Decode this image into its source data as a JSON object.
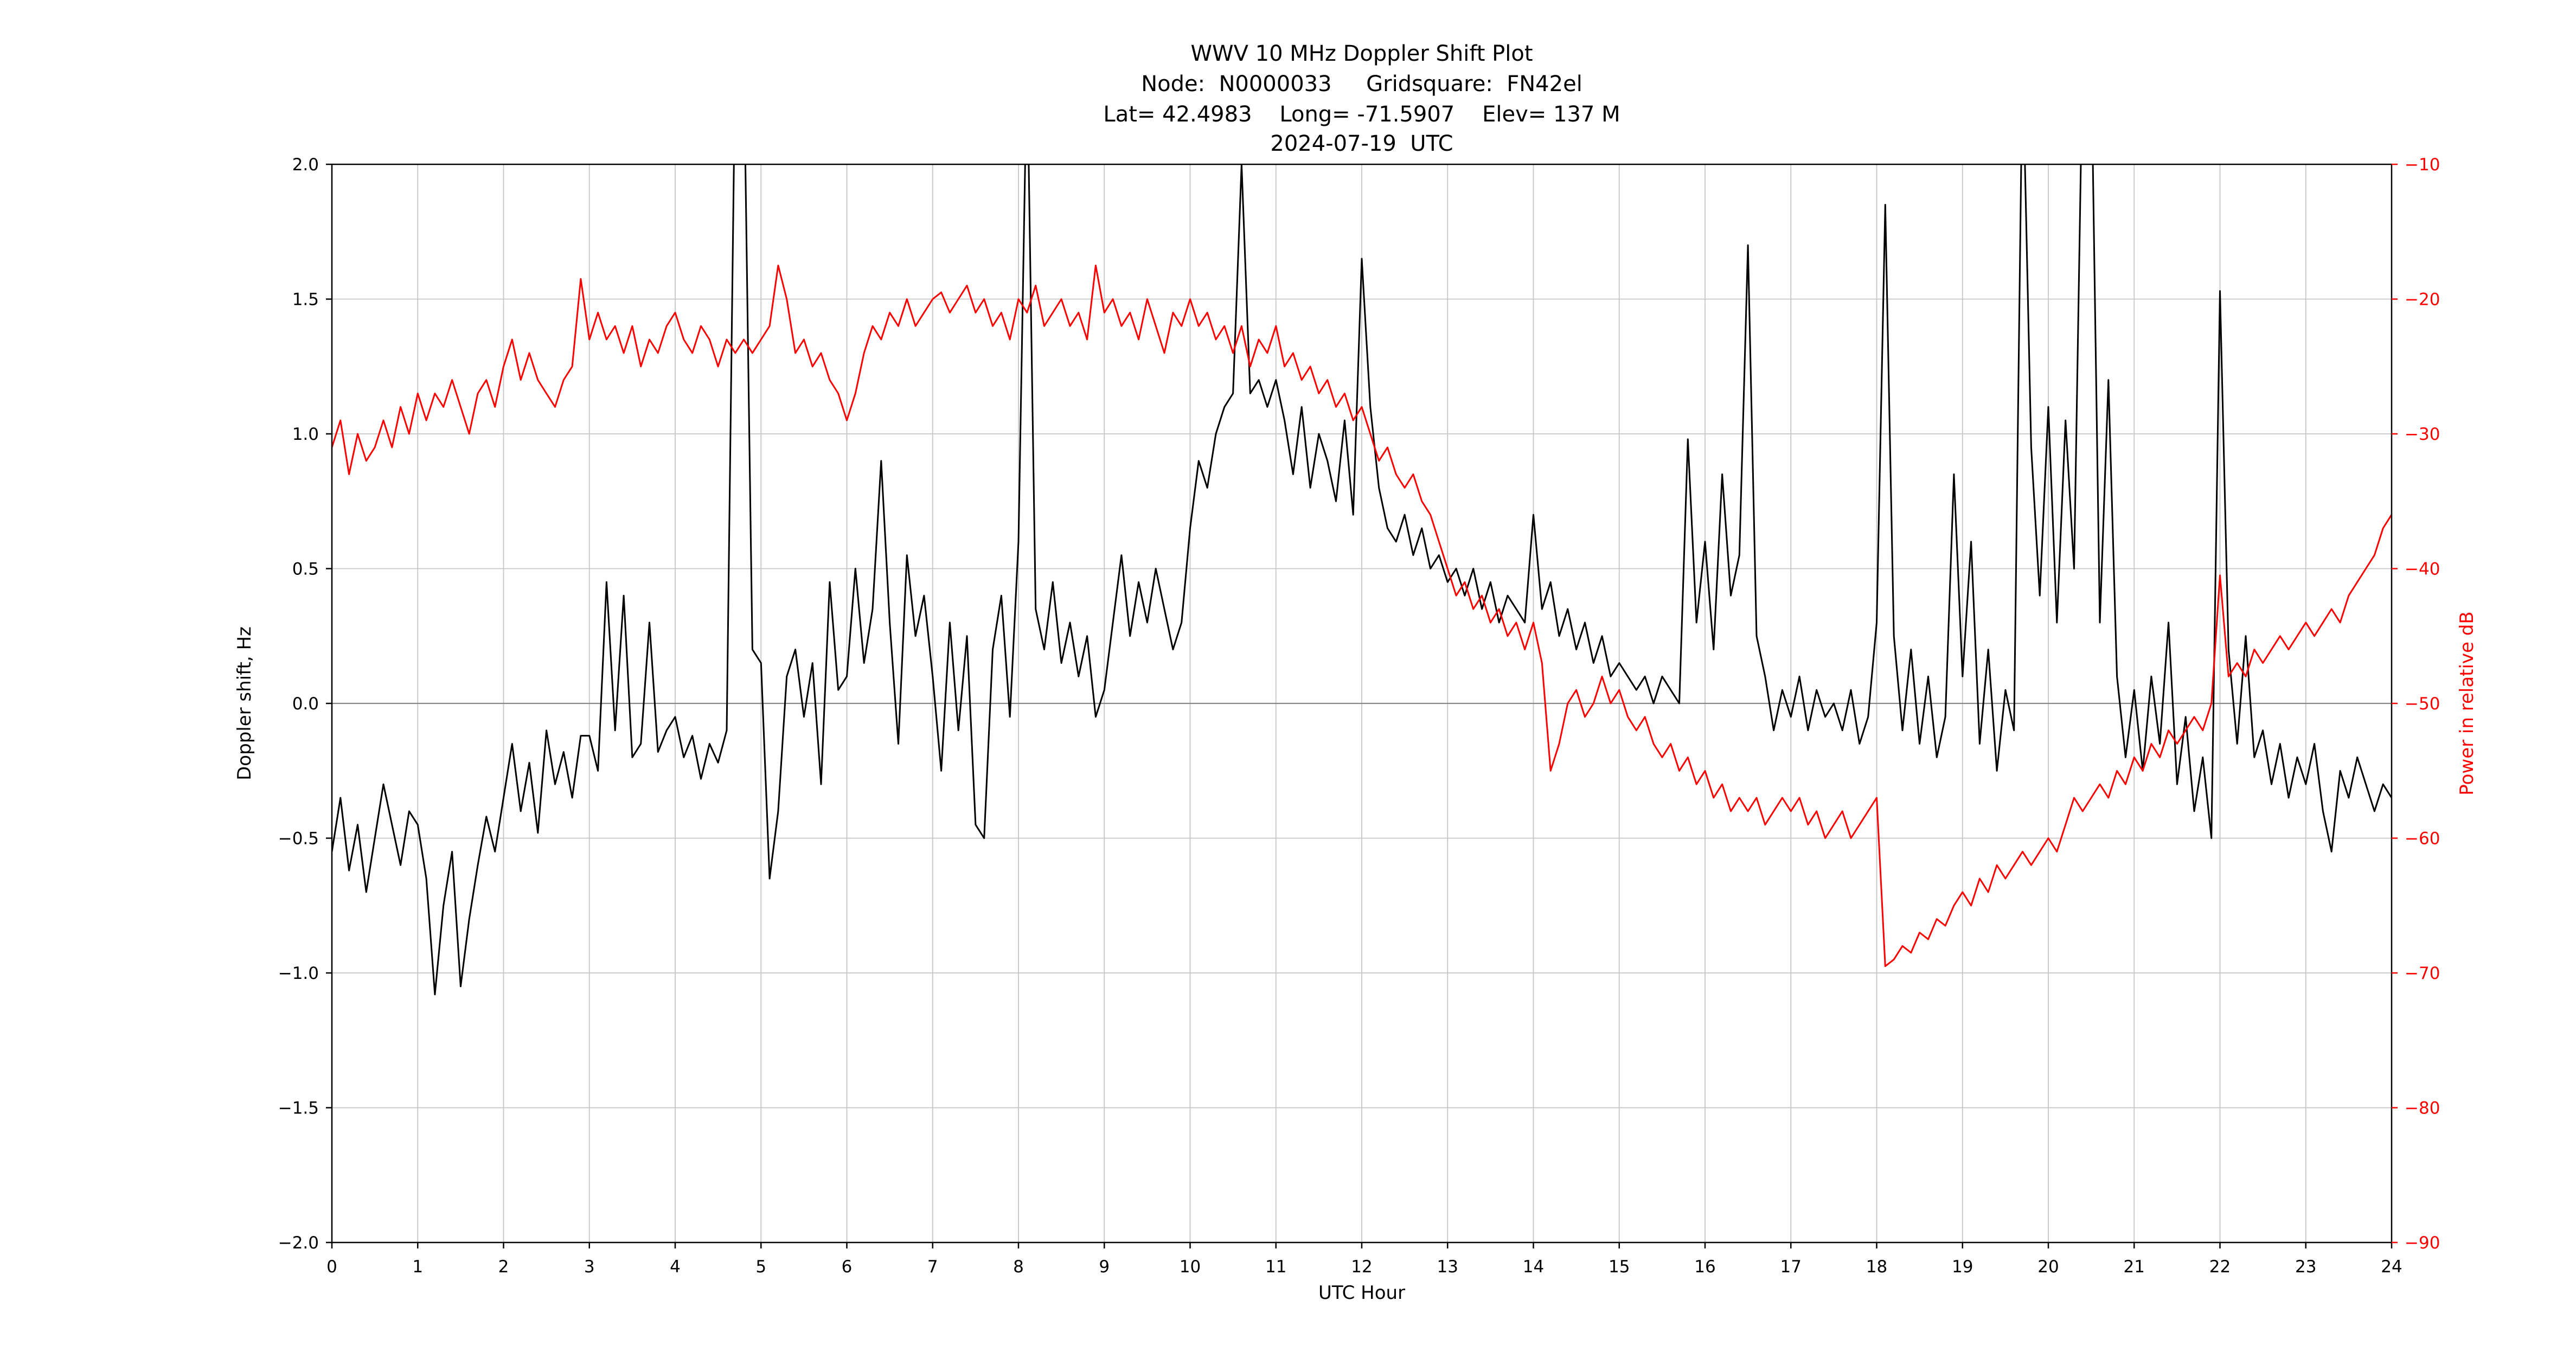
{
  "header": {
    "title": "WWV 10 MHz Doppler Shift Plot",
    "node_line": "Node:  N0000033     Gridsquare:  FN42el",
    "location_line": "Lat= 42.4983    Long= -71.5907    Elev= 137 M",
    "date_line": "2024-07-19  UTC"
  },
  "axes": {
    "x_label": "UTC Hour",
    "y_left_label": "Doppler shift, Hz",
    "y_right_label": "Power in relative dB",
    "x_ticks": [
      "0",
      "1",
      "2",
      "3",
      "4",
      "5",
      "6",
      "7",
      "8",
      "9",
      "10",
      "11",
      "12",
      "13",
      "14",
      "15",
      "16",
      "17",
      "18",
      "19",
      "20",
      "21",
      "22",
      "23",
      "24"
    ],
    "y_left_ticks": [
      "2.0",
      "1.5",
      "1.0",
      "0.5",
      "0.0",
      "−0.5",
      "−1.0",
      "−1.5",
      "−2.0"
    ],
    "y_right_ticks": [
      "−10",
      "−20",
      "−30",
      "−40",
      "−50",
      "−60",
      "−70",
      "−80",
      "−90"
    ]
  },
  "colors": {
    "doppler": "#000000",
    "power": "#ff0000",
    "grid": "#c6c6c6",
    "zero_line": "#888888",
    "spine": "#000000"
  },
  "chart_data": {
    "type": "line",
    "title": "WWV 10 MHz Doppler Shift Plot",
    "xlabel": "UTC Hour",
    "x_range": [
      0,
      24
    ],
    "x": {
      "start": 0,
      "step": 0.1,
      "end": 24
    },
    "grid": true,
    "legend": "none",
    "note": "Black doppler values above 2.0 Hz are clipped at the plot top",
    "series": [
      {
        "name": "Doppler shift, Hz",
        "axis": "left",
        "color": "#000000",
        "ylim": [
          -2.0,
          2.0
        ],
        "values": [
          -0.55,
          -0.35,
          -0.62,
          -0.45,
          -0.7,
          -0.5,
          -0.3,
          -0.45,
          -0.6,
          -0.4,
          -0.45,
          -0.65,
          -1.08,
          -0.75,
          -0.55,
          -1.05,
          -0.8,
          -0.6,
          -0.42,
          -0.55,
          -0.35,
          -0.15,
          -0.4,
          -0.22,
          -0.48,
          -0.1,
          -0.3,
          -0.18,
          -0.35,
          -0.12,
          -0.12,
          -0.25,
          0.45,
          -0.1,
          0.4,
          -0.2,
          -0.15,
          0.3,
          -0.18,
          -0.1,
          -0.05,
          -0.2,
          -0.12,
          -0.28,
          -0.15,
          -0.22,
          -0.1,
          2.4,
          2.4,
          0.2,
          0.15,
          -0.65,
          -0.4,
          0.1,
          0.2,
          -0.05,
          0.15,
          -0.3,
          0.45,
          0.05,
          0.1,
          0.5,
          0.15,
          0.35,
          0.9,
          0.3,
          -0.15,
          0.55,
          0.25,
          0.4,
          0.1,
          -0.25,
          0.3,
          -0.1,
          0.25,
          -0.45,
          -0.5,
          0.2,
          0.4,
          -0.05,
          0.6,
          2.4,
          0.35,
          0.2,
          0.45,
          0.15,
          0.3,
          0.1,
          0.25,
          -0.05,
          0.05,
          0.3,
          0.55,
          0.25,
          0.45,
          0.3,
          0.5,
          0.35,
          0.2,
          0.3,
          0.65,
          0.9,
          0.8,
          1.0,
          1.1,
          1.15,
          2.0,
          1.15,
          1.2,
          1.1,
          1.2,
          1.05,
          0.85,
          1.1,
          0.8,
          1.0,
          0.9,
          0.75,
          1.05,
          0.7,
          1.65,
          1.1,
          0.8,
          0.65,
          0.6,
          0.7,
          0.55,
          0.65,
          0.5,
          0.55,
          0.45,
          0.5,
          0.4,
          0.5,
          0.35,
          0.45,
          0.3,
          0.4,
          0.35,
          0.3,
          0.7,
          0.35,
          0.45,
          0.25,
          0.35,
          0.2,
          0.3,
          0.15,
          0.25,
          0.1,
          0.15,
          0.1,
          0.05,
          0.1,
          0.0,
          0.1,
          0.05,
          0.0,
          0.98,
          0.3,
          0.6,
          0.2,
          0.85,
          0.4,
          0.55,
          1.7,
          0.25,
          0.1,
          -0.1,
          0.05,
          -0.05,
          0.1,
          -0.1,
          0.05,
          -0.05,
          0.0,
          -0.1,
          0.05,
          -0.15,
          -0.05,
          0.3,
          1.85,
          0.25,
          -0.1,
          0.2,
          -0.15,
          0.1,
          -0.2,
          -0.05,
          0.85,
          0.1,
          0.6,
          -0.15,
          0.2,
          -0.25,
          0.05,
          -0.1,
          2.4,
          0.95,
          0.4,
          1.1,
          0.3,
          1.05,
          0.5,
          2.4,
          2.4,
          0.3,
          1.2,
          0.1,
          -0.2,
          0.05,
          -0.25,
          0.1,
          -0.15,
          0.3,
          -0.3,
          -0.05,
          -0.4,
          -0.2,
          -0.5,
          1.53,
          0.2,
          -0.15,
          0.25,
          -0.2,
          -0.1,
          -0.3,
          -0.15,
          -0.35,
          -0.2,
          -0.3,
          -0.15,
          -0.4,
          -0.55,
          -0.25,
          -0.35,
          -0.2,
          -0.3,
          -0.4,
          -0.3,
          -0.35
        ]
      },
      {
        "name": "Power in relative dB",
        "axis": "right",
        "color": "#ff0000",
        "ylim": [
          -90,
          -10
        ],
        "values": [
          -31,
          -29,
          -33,
          -30,
          -32,
          -31,
          -29,
          -31,
          -28,
          -30,
          -27,
          -29,
          -27,
          -28,
          -26,
          -28,
          -30,
          -27,
          -26,
          -28,
          -25,
          -23,
          -26,
          -24,
          -26,
          -27,
          -28,
          -26,
          -25,
          -18.5,
          -23,
          -21,
          -23,
          -22,
          -24,
          -22,
          -25,
          -23,
          -24,
          -22,
          -21,
          -23,
          -24,
          -22,
          -23,
          -25,
          -23,
          -24,
          -23,
          -24,
          -23,
          -22,
          -17.5,
          -20,
          -24,
          -23,
          -25,
          -24,
          -26,
          -27,
          -29,
          -27,
          -24,
          -22,
          -23,
          -21,
          -22,
          -20,
          -22,
          -21,
          -20,
          -19.5,
          -21,
          -20,
          -19,
          -21,
          -20,
          -22,
          -21,
          -23,
          -20,
          -21,
          -19,
          -22,
          -21,
          -20,
          -22,
          -21,
          -23,
          -17.5,
          -21,
          -20,
          -22,
          -21,
          -23,
          -20,
          -22,
          -24,
          -21,
          -22,
          -20,
          -22,
          -21,
          -23,
          -22,
          -24,
          -22,
          -25,
          -23,
          -24,
          -22,
          -25,
          -24,
          -26,
          -25,
          -27,
          -26,
          -28,
          -27,
          -29,
          -28,
          -30,
          -32,
          -31,
          -33,
          -34,
          -33,
          -35,
          -36,
          -38,
          -40,
          -42,
          -41,
          -43,
          -42,
          -44,
          -43,
          -45,
          -44,
          -46,
          -44,
          -47,
          -55,
          -53,
          -50,
          -49,
          -51,
          -50,
          -48,
          -50,
          -49,
          -51,
          -52,
          -51,
          -53,
          -54,
          -53,
          -55,
          -54,
          -56,
          -55,
          -57,
          -56,
          -58,
          -57,
          -58,
          -57,
          -59,
          -58,
          -57,
          -58,
          -57,
          -59,
          -58,
          -60,
          -59,
          -58,
          -60,
          -59,
          -58,
          -57,
          -69.5,
          -69,
          -68,
          -68.5,
          -67,
          -67.5,
          -66,
          -66.5,
          -65,
          -64,
          -65,
          -63,
          -64,
          -62,
          -63,
          -62,
          -61,
          -62,
          -61,
          -60,
          -61,
          -59,
          -57,
          -58,
          -57,
          -56,
          -57,
          -55,
          -56,
          -54,
          -55,
          -53,
          -54,
          -52,
          -53,
          -52,
          -51,
          -52,
          -50,
          -40.5,
          -48,
          -47,
          -48,
          -46,
          -47,
          -46,
          -45,
          -46,
          -45,
          -44,
          -45,
          -44,
          -43,
          -44,
          -42,
          -41,
          -40,
          -39,
          -37,
          -36
        ]
      }
    ]
  }
}
